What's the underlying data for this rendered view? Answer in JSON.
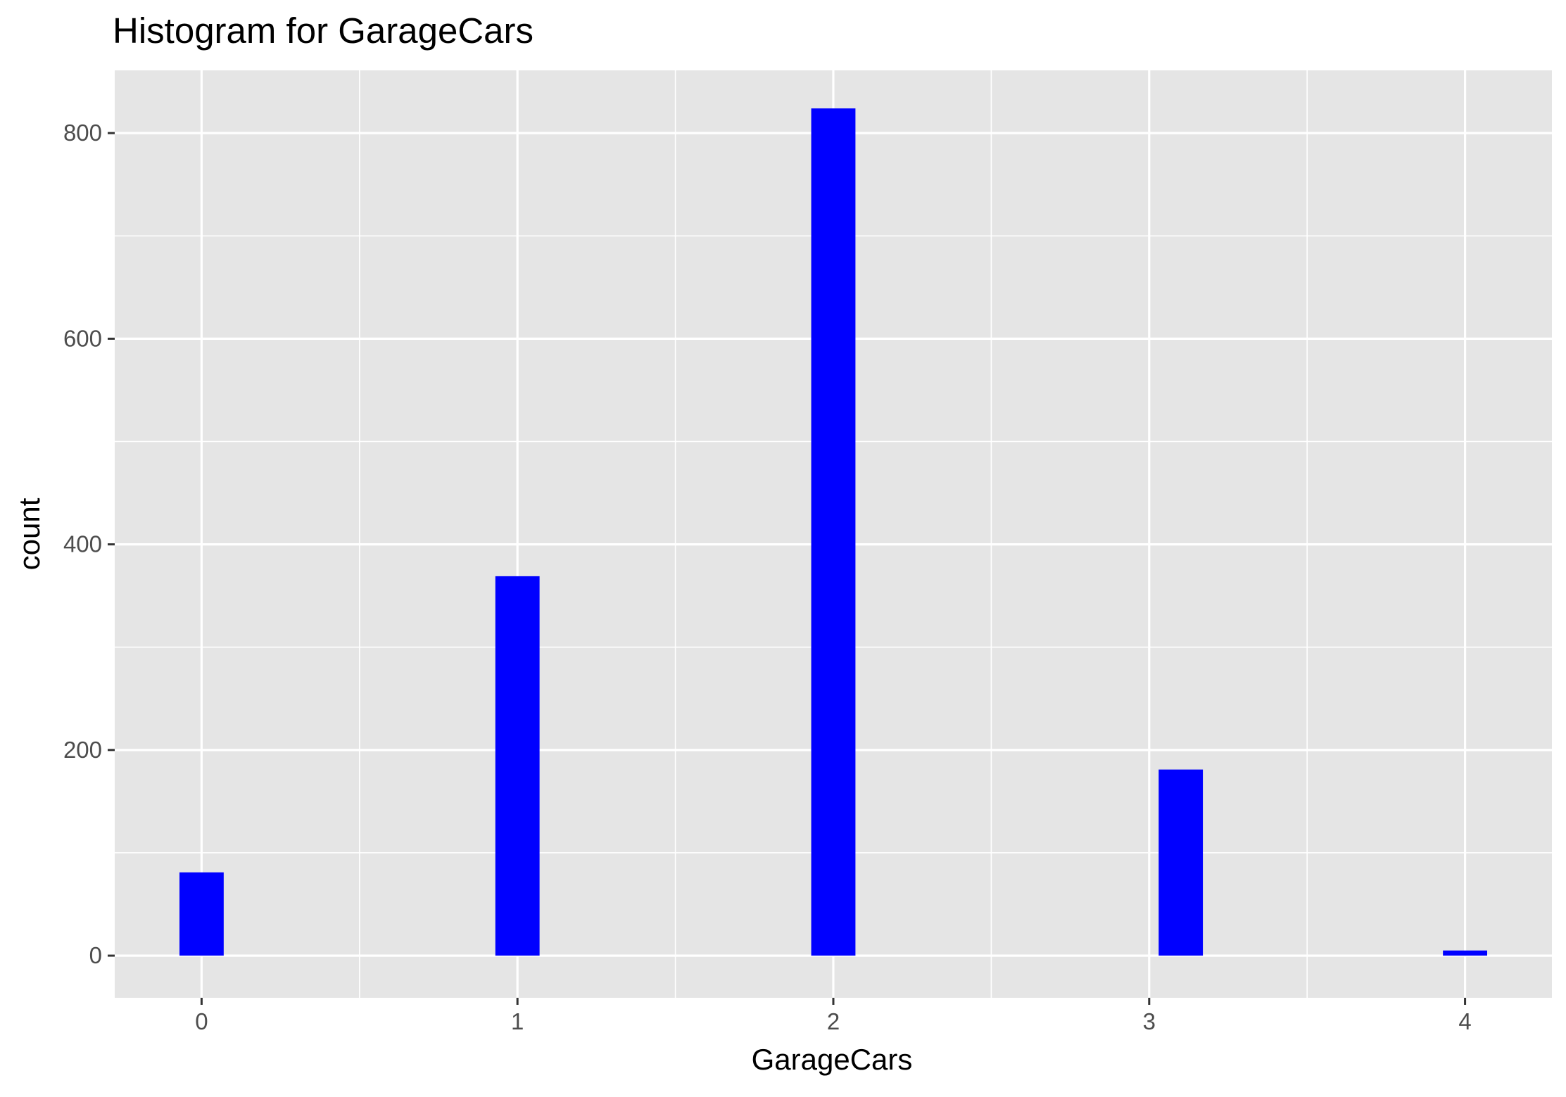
{
  "chart_data": {
    "type": "bar",
    "title": "Histogram for GarageCars",
    "xlabel": "GarageCars",
    "ylabel": "count",
    "x_ticks": [
      0,
      1,
      2,
      3,
      4
    ],
    "y_ticks": [
      0,
      200,
      400,
      600,
      800
    ],
    "xlim": [
      -0.275,
      4.275
    ],
    "ylim": [
      -41,
      861
    ],
    "bar_width": 0.14,
    "bars": [
      {
        "x": 0,
        "value": 81
      },
      {
        "x": 1,
        "value": 369
      },
      {
        "x": 2,
        "value": 824
      },
      {
        "x": 3.1,
        "value": 181
      },
      {
        "x": 4,
        "value": 5
      }
    ],
    "bar_color": "#0000FF",
    "panel_color": "#E5E5E5",
    "grid_color": "#FFFFFF",
    "grid": true,
    "legend": "none"
  }
}
